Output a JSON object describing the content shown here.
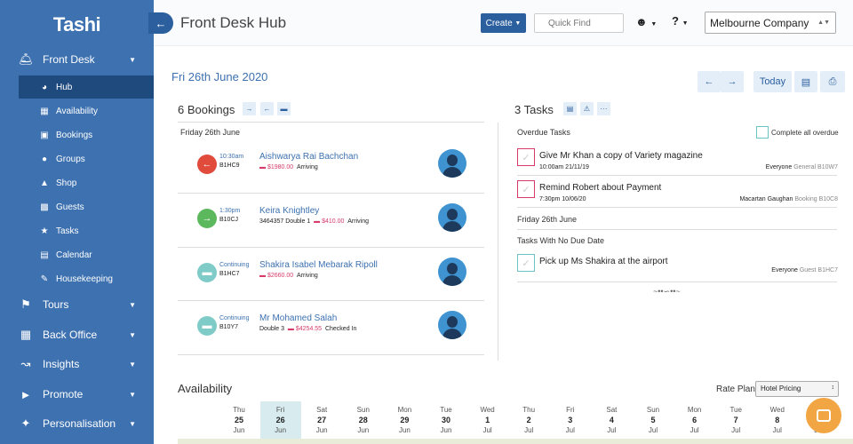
{
  "app": {
    "logo": "Tashi"
  },
  "sidebar": {
    "front_desk": {
      "label": "Front Desk",
      "icon": "bell-icon"
    },
    "sub_items": [
      {
        "label": "Hub",
        "icon": "dashboard-icon",
        "active": true
      },
      {
        "label": "Availability",
        "icon": "grid-icon"
      },
      {
        "label": "Bookings",
        "icon": "briefcase-icon"
      },
      {
        "label": "Groups",
        "icon": "users-icon"
      },
      {
        "label": "Shop",
        "icon": "basket-icon"
      },
      {
        "label": "Guests",
        "icon": "id-card-icon"
      },
      {
        "label": "Tasks",
        "icon": "star-icon"
      },
      {
        "label": "Calendar",
        "icon": "calendar-icon"
      },
      {
        "label": "Housekeeping",
        "icon": "broom-icon"
      }
    ],
    "sections": [
      {
        "label": "Tours",
        "icon": "map-icon"
      },
      {
        "label": "Back Office",
        "icon": "toolbox-icon"
      },
      {
        "label": "Insights",
        "icon": "chart-icon"
      },
      {
        "label": "Promote",
        "icon": "megaphone-icon"
      },
      {
        "label": "Personalisation",
        "icon": "sparkle-icon"
      }
    ]
  },
  "header": {
    "title": "Front Desk Hub",
    "create_label": "Create",
    "quickfind_placeholder": "Quick Find",
    "company": "Melbourne Company"
  },
  "hub": {
    "date_title": "Fri 26th June 2020",
    "today_label": "Today"
  },
  "bookings": {
    "title": "6 Bookings",
    "day_label": "Friday 26th June",
    "items": [
      {
        "time": "10:30am",
        "ref": "B1HC9",
        "name": "Aishwarya Rai Bachchan",
        "extra": "",
        "price": "$1980.00",
        "status": "Arriving",
        "type": "departing",
        "color": "#e04b3c"
      },
      {
        "time": "1:30pm",
        "ref": "B10CJ",
        "name": "Keira Knightley",
        "extra": "3464357  Double 1",
        "price": "$410.00",
        "status": "Arriving",
        "type": "arriving",
        "color": "#5cb85c"
      },
      {
        "time": "Continuing",
        "ref": "B1HC7",
        "name": "Shakira Isabel Mebarak Ripoll",
        "extra": "",
        "price": "$2660.00",
        "status": "Arriving",
        "type": "continuing",
        "color": "#7ecbc8"
      },
      {
        "time": "Continuing",
        "ref": "B10Y7",
        "name": "Mr Mohamed Salah",
        "extra": "Double 3",
        "price": "$4254.55",
        "status": "Checked In",
        "type": "continuing",
        "color": "#7ecbc8"
      }
    ]
  },
  "tasks": {
    "title": "3 Tasks",
    "overdue_label": "Overdue Tasks",
    "complete_all_label": "Complete all overdue",
    "friday_label": "Friday 26th June",
    "no_due_label": "Tasks With No Due Date",
    "items": [
      {
        "text": "Give Mr Khan a copy of Variety magazine",
        "when": "10:00am 21/11/19",
        "who": "Everyone",
        "ref": "General B10W7",
        "overdue": true
      },
      {
        "text": "Remind Robert about Payment",
        "when": "7:30pm 10/06/20",
        "who": "Macartan Gaughan",
        "ref": "Booking B10C8",
        "overdue": true
      },
      {
        "text": "Pick up Ms Shakira at the airport",
        "when": "",
        "who": "Everyone",
        "ref": "Guest B1HC7",
        "overdue": false
      }
    ]
  },
  "availability": {
    "title": "Availability",
    "rate_plan_label": "Rate Plan",
    "rate_plan_value": "Hotel Pricing",
    "days": [
      {
        "dow": "Thu",
        "num": "25",
        "mon": "Jun"
      },
      {
        "dow": "Fri",
        "num": "26",
        "mon": "Jun",
        "today": true
      },
      {
        "dow": "Sat",
        "num": "27",
        "mon": "Jun"
      },
      {
        "dow": "Sun",
        "num": "28",
        "mon": "Jun"
      },
      {
        "dow": "Mon",
        "num": "29",
        "mon": "Jun"
      },
      {
        "dow": "Tue",
        "num": "30",
        "mon": "Jun"
      },
      {
        "dow": "Wed",
        "num": "1",
        "mon": "Jul"
      },
      {
        "dow": "Thu",
        "num": "2",
        "mon": "Jul"
      },
      {
        "dow": "Fri",
        "num": "3",
        "mon": "Jul"
      },
      {
        "dow": "Sat",
        "num": "4",
        "mon": "Jul"
      },
      {
        "dow": "Sun",
        "num": "5",
        "mon": "Jul"
      },
      {
        "dow": "Mon",
        "num": "6",
        "mon": "Jul"
      },
      {
        "dow": "Tue",
        "num": "7",
        "mon": "Jul"
      },
      {
        "dow": "Wed",
        "num": "8",
        "mon": "Jul"
      },
      {
        "dow": "Thu",
        "num": "9",
        "mon": "Jul"
      }
    ]
  }
}
